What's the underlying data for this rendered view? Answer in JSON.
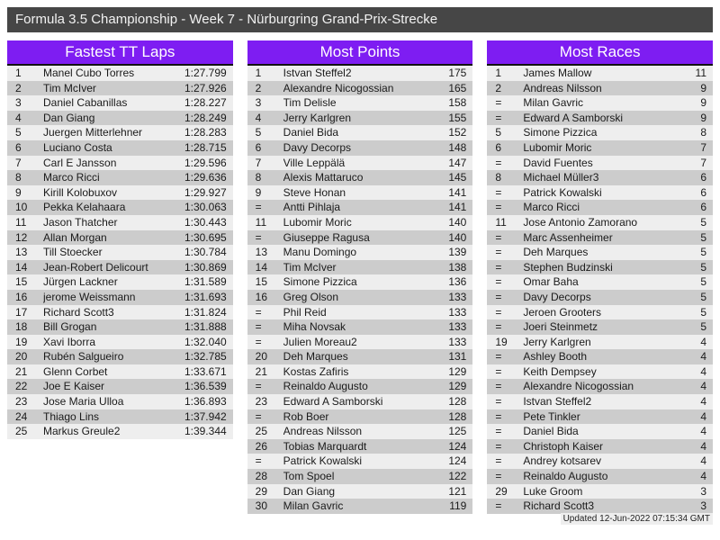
{
  "title": "Formula 3.5 Championship - Week 7 - Nürburgring Grand-Prix-Strecke",
  "footer": "Updated 12-Jun-2022 07:15:34 GMT",
  "colors": {
    "accent": "#7e1df2",
    "titlebar": "#464646",
    "row_odd": "#eeeeee",
    "row_even": "#cccccc"
  },
  "tables": [
    {
      "title": "Fastest TT Laps",
      "rows": [
        [
          "1",
          "Manel Cubo Torres",
          "1:27.799"
        ],
        [
          "2",
          "Tim McIver",
          "1:27.926"
        ],
        [
          "3",
          "Daniel Cabanillas",
          "1:28.227"
        ],
        [
          "4",
          "Dan Giang",
          "1:28.249"
        ],
        [
          "5",
          "Juergen Mitterlehner",
          "1:28.283"
        ],
        [
          "6",
          "Luciano Costa",
          "1:28.715"
        ],
        [
          "7",
          "Carl E Jansson",
          "1:29.596"
        ],
        [
          "8",
          "Marco Ricci",
          "1:29.636"
        ],
        [
          "9",
          "Kirill Kolobuxov",
          "1:29.927"
        ],
        [
          "10",
          "Pekka Kelahaara",
          "1:30.063"
        ],
        [
          "11",
          "Jason Thatcher",
          "1:30.443"
        ],
        [
          "12",
          "Allan Morgan",
          "1:30.695"
        ],
        [
          "13",
          "Till Stoecker",
          "1:30.784"
        ],
        [
          "14",
          "Jean-Robert Delicourt",
          "1:30.869"
        ],
        [
          "15",
          "Jürgen Lackner",
          "1:31.589"
        ],
        [
          "16",
          "jerome Weissmann",
          "1:31.693"
        ],
        [
          "17",
          "Richard Scott3",
          "1:31.824"
        ],
        [
          "18",
          "Bill Grogan",
          "1:31.888"
        ],
        [
          "19",
          "Xavi Iborra",
          "1:32.040"
        ],
        [
          "20",
          "Rubén Salgueiro",
          "1:32.785"
        ],
        [
          "21",
          "Glenn Corbet",
          "1:33.671"
        ],
        [
          "22",
          "Joe E Kaiser",
          "1:36.539"
        ],
        [
          "23",
          "Jose Maria Ulloa",
          "1:36.893"
        ],
        [
          "24",
          "Thiago Lins",
          "1:37.942"
        ],
        [
          "25",
          "Markus Greule2",
          "1:39.344"
        ]
      ]
    },
    {
      "title": "Most Points",
      "rows": [
        [
          "1",
          "Istvan Steffel2",
          "175"
        ],
        [
          "2",
          "Alexandre Nicogossian",
          "165"
        ],
        [
          "3",
          "Tim Delisle",
          "158"
        ],
        [
          "4",
          "Jerry Karlgren",
          "155"
        ],
        [
          "5",
          "Daniel Bida",
          "152"
        ],
        [
          "6",
          "Davy Decorps",
          "148"
        ],
        [
          "7",
          "Ville Leppälä",
          "147"
        ],
        [
          "8",
          "Alexis Mattaruco",
          "145"
        ],
        [
          "9",
          "Steve Honan",
          "141"
        ],
        [
          "=",
          "Antti Pihlaja",
          "141"
        ],
        [
          "11",
          "Lubomir Moric",
          "140"
        ],
        [
          "=",
          "Giuseppe Ragusa",
          "140"
        ],
        [
          "13",
          "Manu Domingo",
          "139"
        ],
        [
          "14",
          "Tim McIver",
          "138"
        ],
        [
          "15",
          "Simone Pizzica",
          "136"
        ],
        [
          "16",
          "Greg Olson",
          "133"
        ],
        [
          "=",
          "Phil Reid",
          "133"
        ],
        [
          "=",
          "Miha Novsak",
          "133"
        ],
        [
          "=",
          "Julien Moreau2",
          "133"
        ],
        [
          "20",
          "Deh Marques",
          "131"
        ],
        [
          "21",
          "Kostas Zafiris",
          "129"
        ],
        [
          "=",
          "Reinaldo Augusto",
          "129"
        ],
        [
          "23",
          "Edward A Samborski",
          "128"
        ],
        [
          "=",
          "Rob Boer",
          "128"
        ],
        [
          "25",
          "Andreas Nilsson",
          "125"
        ],
        [
          "26",
          "Tobias Marquardt",
          "124"
        ],
        [
          "=",
          "Patrick Kowalski",
          "124"
        ],
        [
          "28",
          "Tom Spoel",
          "122"
        ],
        [
          "29",
          "Dan Giang",
          "121"
        ],
        [
          "30",
          "Milan Gavric",
          "119"
        ]
      ]
    },
    {
      "title": "Most Races",
      "rows": [
        [
          "1",
          "James Mallow",
          "11"
        ],
        [
          "2",
          "Andreas Nilsson",
          "9"
        ],
        [
          "=",
          "Milan Gavric",
          "9"
        ],
        [
          "=",
          "Edward A Samborski",
          "9"
        ],
        [
          "5",
          "Simone Pizzica",
          "8"
        ],
        [
          "6",
          "Lubomir Moric",
          "7"
        ],
        [
          "=",
          "David Fuentes",
          "7"
        ],
        [
          "8",
          "Michael Müller3",
          "6"
        ],
        [
          "=",
          "Patrick Kowalski",
          "6"
        ],
        [
          "=",
          "Marco Ricci",
          "6"
        ],
        [
          "11",
          "Jose Antonio Zamorano",
          "5"
        ],
        [
          "=",
          "Marc Assenheimer",
          "5"
        ],
        [
          "=",
          "Deh Marques",
          "5"
        ],
        [
          "=",
          "Stephen Budzinski",
          "5"
        ],
        [
          "=",
          "Omar Baha",
          "5"
        ],
        [
          "=",
          "Davy Decorps",
          "5"
        ],
        [
          "=",
          "Jeroen Grooters",
          "5"
        ],
        [
          "=",
          "Joeri Steinmetz",
          "5"
        ],
        [
          "19",
          "Jerry Karlgren",
          "4"
        ],
        [
          "=",
          "Ashley Booth",
          "4"
        ],
        [
          "=",
          "Keith Dempsey",
          "4"
        ],
        [
          "=",
          "Alexandre Nicogossian",
          "4"
        ],
        [
          "=",
          "Istvan Steffel2",
          "4"
        ],
        [
          "=",
          "Pete Tinkler",
          "4"
        ],
        [
          "=",
          "Daniel Bida",
          "4"
        ],
        [
          "=",
          "Christoph Kaiser",
          "4"
        ],
        [
          "=",
          "Andrey kotsarev",
          "4"
        ],
        [
          "=",
          "Reinaldo Augusto",
          "4"
        ],
        [
          "29",
          "Luke Groom",
          "3"
        ],
        [
          "=",
          "Richard Scott3",
          "3"
        ]
      ]
    }
  ]
}
